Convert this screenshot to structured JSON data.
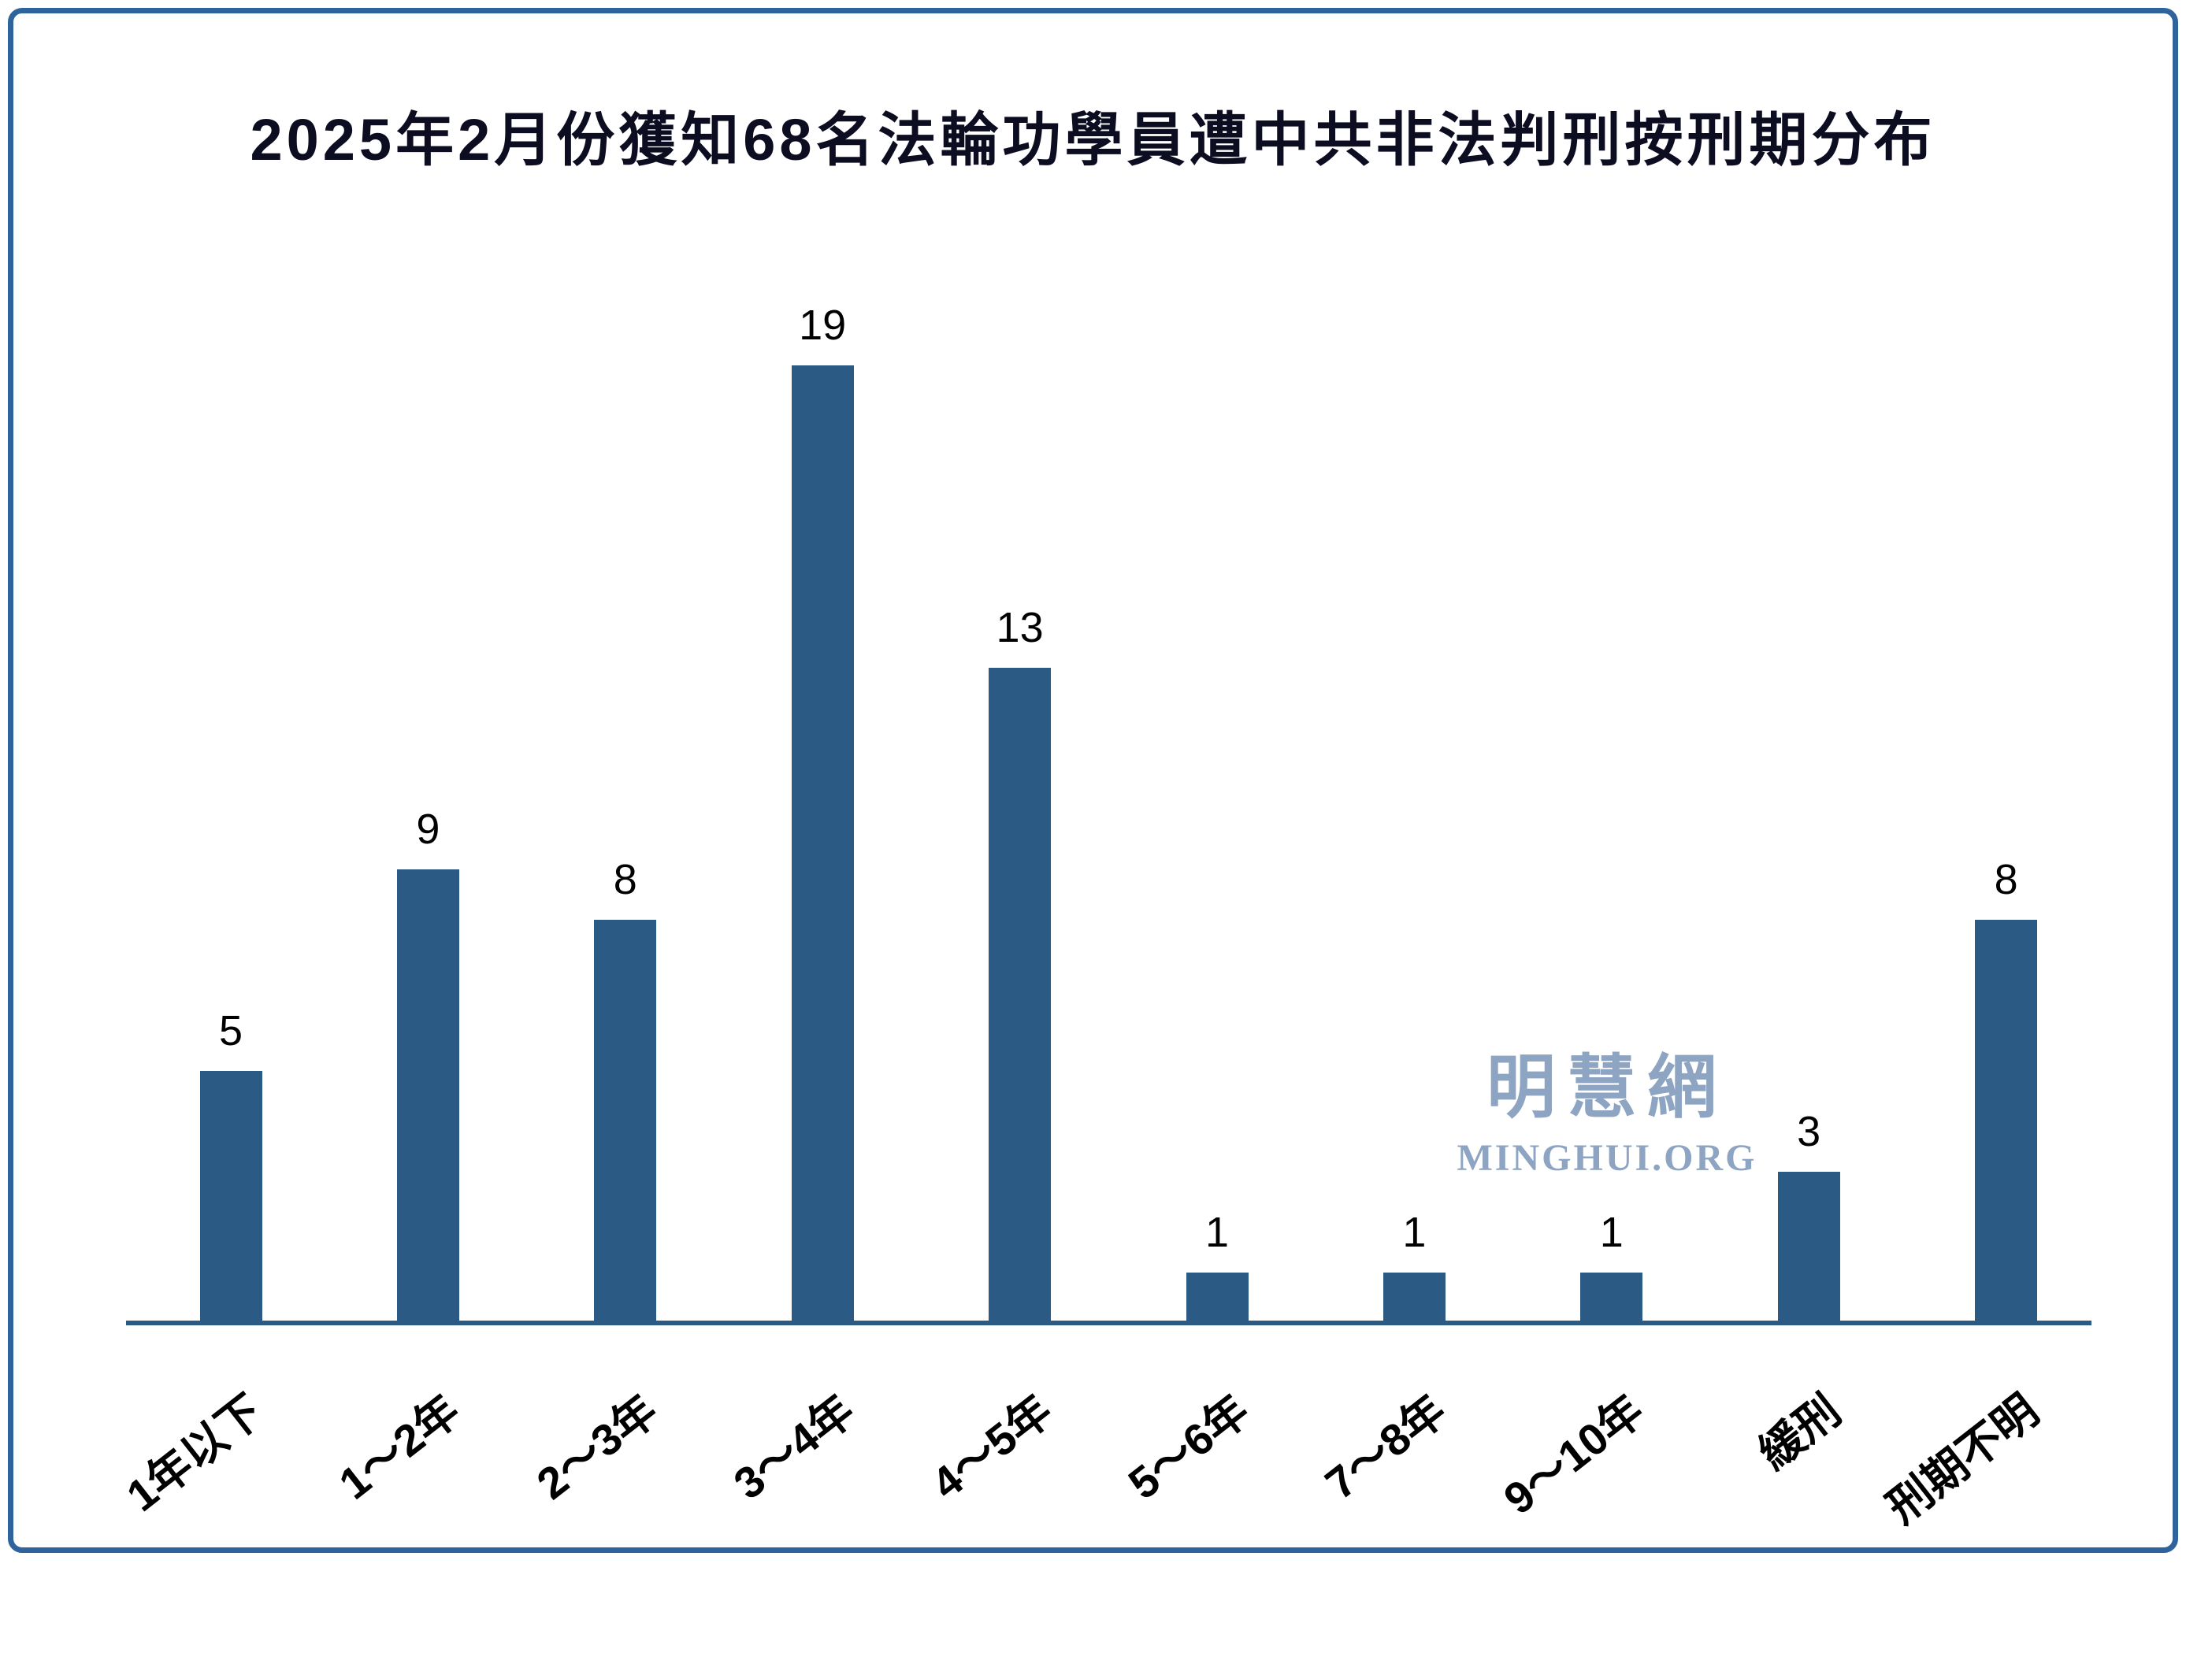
{
  "title": "2025年2月份獲知68名法輪功學員遭中共非法判刑按刑期分布",
  "watermark": {
    "cn": "明慧網",
    "en": "MINGHUI.ORG"
  },
  "colors": {
    "bar": "#2b5a84",
    "axis": "#2b5a84",
    "border": "#2e639c",
    "watermark": "#8da4c2",
    "title_text": "#0d0d22",
    "background": "#ffffff"
  },
  "chart_data": {
    "type": "bar",
    "title": "2025年2月份獲知68名法輪功學員遭中共非法判刑按刑期分布",
    "categories": [
      "1年以下",
      "1～2年",
      "2～3年",
      "3～4年",
      "4～5年",
      "5～6年",
      "7～8年",
      "9～10年",
      "緩刑",
      "刑期不明"
    ],
    "values": [
      5,
      9,
      8,
      19,
      13,
      1,
      1,
      1,
      3,
      8
    ],
    "total": 68,
    "xlabel": "",
    "ylabel": "",
    "ylim": [
      0,
      20
    ],
    "grid": false,
    "legend": "none",
    "value_labels": true,
    "bar_color": "#2b5a84"
  }
}
